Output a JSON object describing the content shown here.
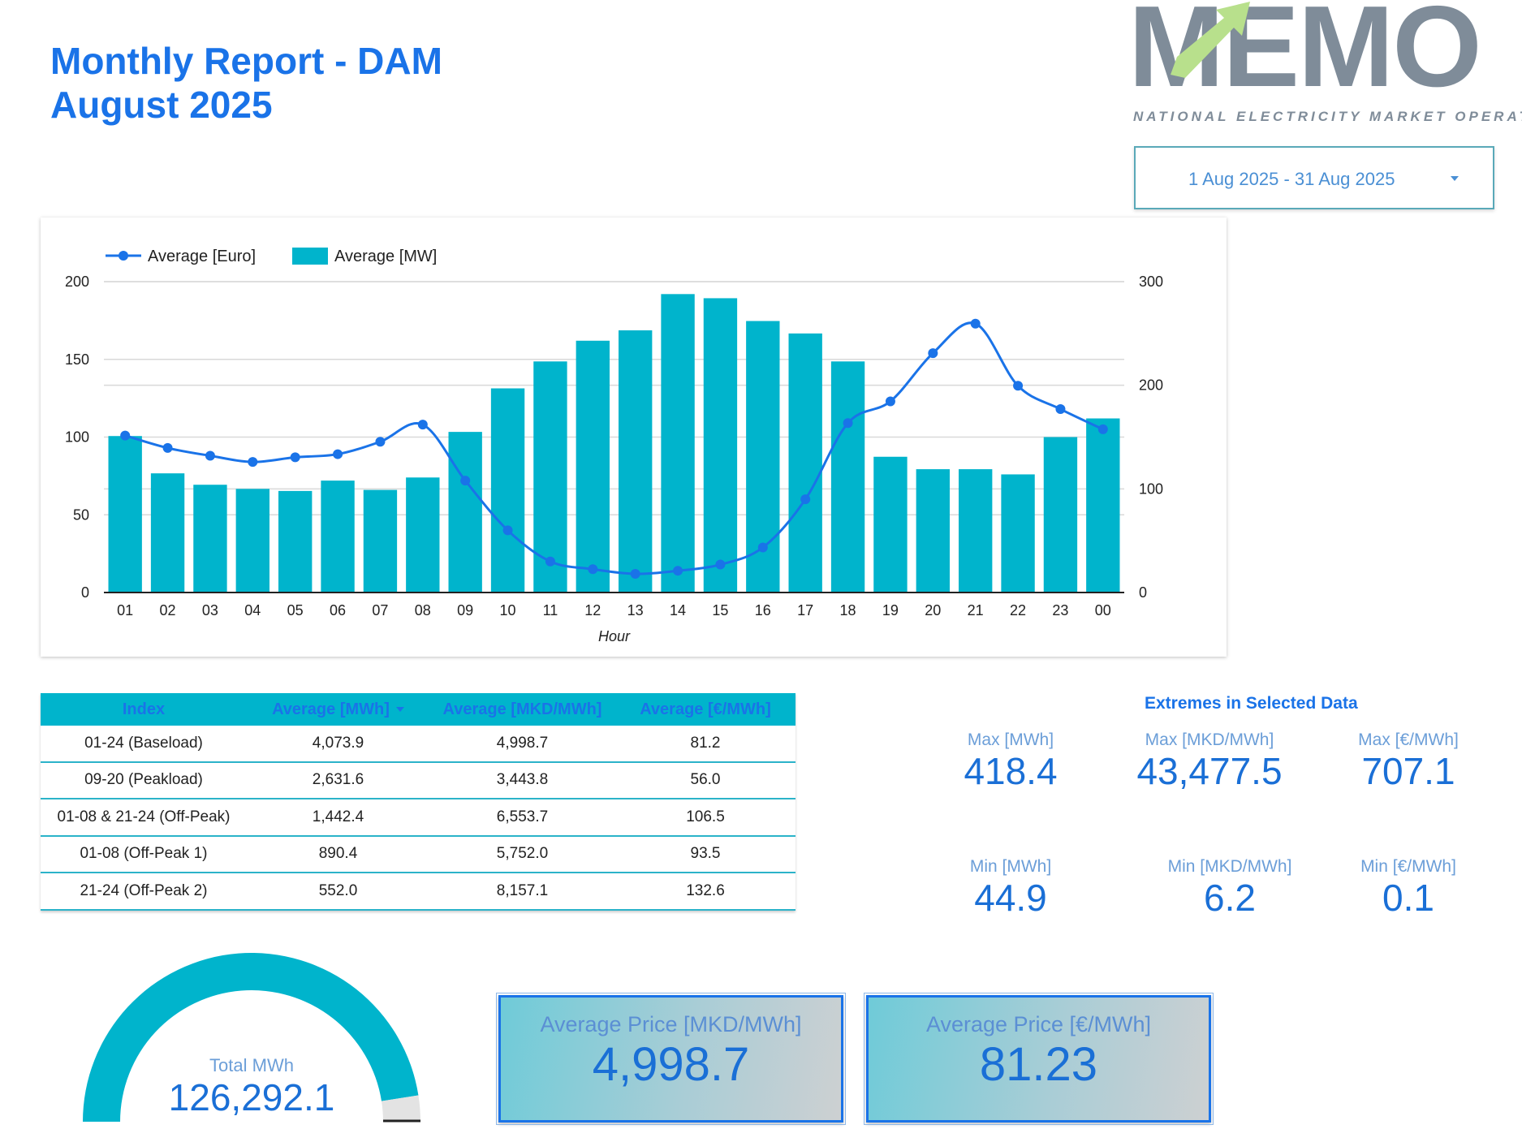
{
  "header": {
    "title_line1": "Monthly Report - DAM",
    "title_line2": "August 2025"
  },
  "logo": {
    "word": "MEMO",
    "tagline": "NATIONAL ELECTRICITY MARKET OPERATOR",
    "colors": {
      "text": "#7f8c99",
      "arrow": "#b8e08c"
    }
  },
  "date_range": {
    "label": "1 Aug 2025 - 31 Aug 2025"
  },
  "chart_data": {
    "type": "bar",
    "xlabel": "Hour",
    "categories": [
      "01",
      "02",
      "03",
      "04",
      "05",
      "06",
      "07",
      "08",
      "09",
      "10",
      "11",
      "12",
      "13",
      "14",
      "15",
      "16",
      "17",
      "18",
      "19",
      "20",
      "21",
      "22",
      "23",
      "00"
    ],
    "series": [
      {
        "name": "Average [MW]",
        "type": "bar",
        "axis": "right",
        "color": "#00b4cc",
        "values": [
          151,
          115,
          104,
          100,
          98,
          108,
          99,
          111,
          155,
          197,
          223,
          243,
          253,
          288,
          284,
          262,
          250,
          223,
          131,
          119,
          119,
          114,
          150,
          168
        ]
      },
      {
        "name": "Average [Euro]",
        "type": "line",
        "axis": "left",
        "color": "#1a73e8",
        "values": [
          101,
          93,
          88,
          84,
          87,
          89,
          97,
          108,
          72,
          40,
          20,
          15,
          12,
          14,
          18,
          29,
          60,
          109,
          123,
          154,
          173,
          133,
          118,
          105
        ]
      }
    ],
    "y_left": {
      "range": [
        0,
        200
      ],
      "ticks": [
        0,
        50,
        100,
        150,
        200
      ]
    },
    "y_right": {
      "range": [
        0,
        300
      ],
      "ticks": [
        0,
        100,
        200,
        300
      ]
    },
    "legend_position": "top-left",
    "grid": true
  },
  "table": {
    "headers": [
      "Index",
      "Average [MWh]",
      "Average [MKD/MWh]",
      "Average [€/MWh]"
    ],
    "rows": [
      [
        "01-24 (Baseload)",
        "4,073.9",
        "4,998.7",
        "81.2"
      ],
      [
        "09-20 (Peakload)",
        "2,631.6",
        "3,443.8",
        "56.0"
      ],
      [
        "01-08 & 21-24 (Off-Peak)",
        "1,442.4",
        "6,553.7",
        "106.5"
      ],
      [
        "01-08 (Off-Peak 1)",
        "890.4",
        "5,752.0",
        "93.5"
      ],
      [
        "21-24 (Off-Peak 2)",
        "552.0",
        "8,157.1",
        "132.6"
      ]
    ]
  },
  "extremes": {
    "title": "Extremes in Selected Data",
    "max_mwh": {
      "label": "Max [MWh]",
      "value": "418.4"
    },
    "max_mkd": {
      "label": "Max [MKD/MWh]",
      "value": "43,477.5"
    },
    "max_eur": {
      "label": "Max [€/MWh]",
      "value": "707.1"
    },
    "min_mwh": {
      "label": "Min [MWh]",
      "value": "44.9"
    },
    "min_mkd": {
      "label": "Min [MKD/MWh]",
      "value": "6.2"
    },
    "min_eur": {
      "label": "Min [€/MWh]",
      "value": "0.1"
    }
  },
  "gauge": {
    "label": "Total MWh",
    "value": "126,292.1",
    "fill_fraction": 0.95,
    "color": "#00b4cc"
  },
  "price_mkd": {
    "label": "Average Price [MKD/MWh]",
    "value": "4,998.7"
  },
  "price_eur": {
    "label": "Average Price [€/MWh]",
    "value": "81.23"
  }
}
